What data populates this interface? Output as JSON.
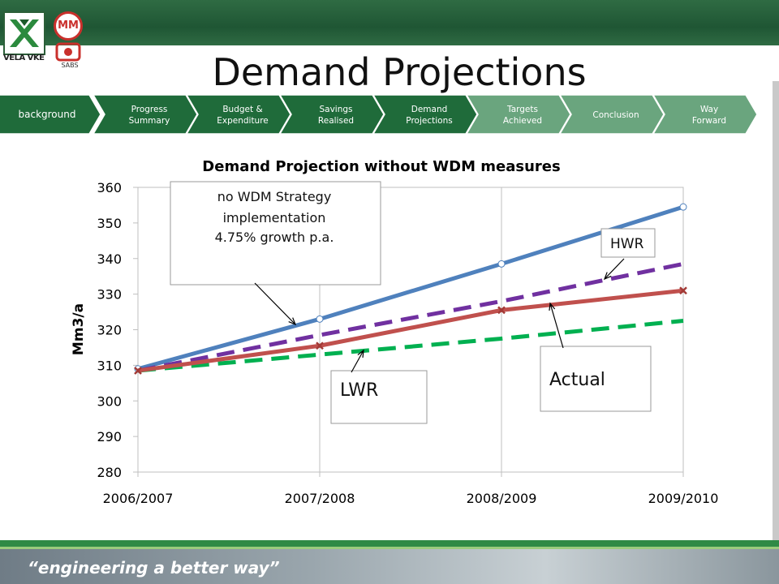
{
  "brand": {
    "logo1_text": "VELA VKE",
    "logo2_text": "MM",
    "logo3_text": "SABS",
    "slogan": "“engineering a better way”"
  },
  "slide_title": "Demand Projections",
  "nav": {
    "items": [
      {
        "label": "background",
        "active": true
      },
      {
        "label": "Progress Summary",
        "active": false
      },
      {
        "label": "Budget & Expenditure",
        "active": false
      },
      {
        "label": "Savings Realised",
        "active": false
      },
      {
        "label": "Demand Projections",
        "active": false
      },
      {
        "label": "Targets Achieved",
        "active": false
      },
      {
        "label": "Conclusion",
        "active": false
      },
      {
        "label": "Way Forward",
        "active": false
      }
    ]
  },
  "chart_data": {
    "type": "line",
    "title": "Demand Projection without WDM measures",
    "ylabel": "Mm3/a",
    "xlabel": "",
    "categories": [
      "2006/2007",
      "2007/2008",
      "2008/2009",
      "2009/2010"
    ],
    "ylim": [
      280,
      360
    ],
    "yticks": [
      280,
      290,
      300,
      310,
      320,
      330,
      340,
      350,
      360
    ],
    "grid": "vertical",
    "legend": "none",
    "series": [
      {
        "name": "no WDM Strategy",
        "values": [
          309,
          323,
          338.5,
          354.5
        ],
        "color": "#4f81bd",
        "style": "solid",
        "marker": "circle"
      },
      {
        "name": "HWR",
        "values": [
          308.5,
          318.5,
          328,
          338.5
        ],
        "color": "#7030a0",
        "style": "dashed",
        "marker": "none"
      },
      {
        "name": "Actual",
        "values": [
          308.5,
          315.5,
          325.5,
          331
        ],
        "color": "#c0504d",
        "style": "solid",
        "marker": "x"
      },
      {
        "name": "LWR",
        "values": [
          308.5,
          313,
          317.5,
          322.5
        ],
        "color": "#00b050",
        "style": "dashed",
        "marker": "none"
      }
    ],
    "annotations": [
      {
        "lines": [
          "no WDM Strategy",
          "implementation",
          "4.75% growth p.a."
        ]
      },
      {
        "lines": [
          "HWR"
        ]
      },
      {
        "lines": [
          "Actual"
        ]
      },
      {
        "lines": [
          "LWR"
        ]
      }
    ]
  }
}
